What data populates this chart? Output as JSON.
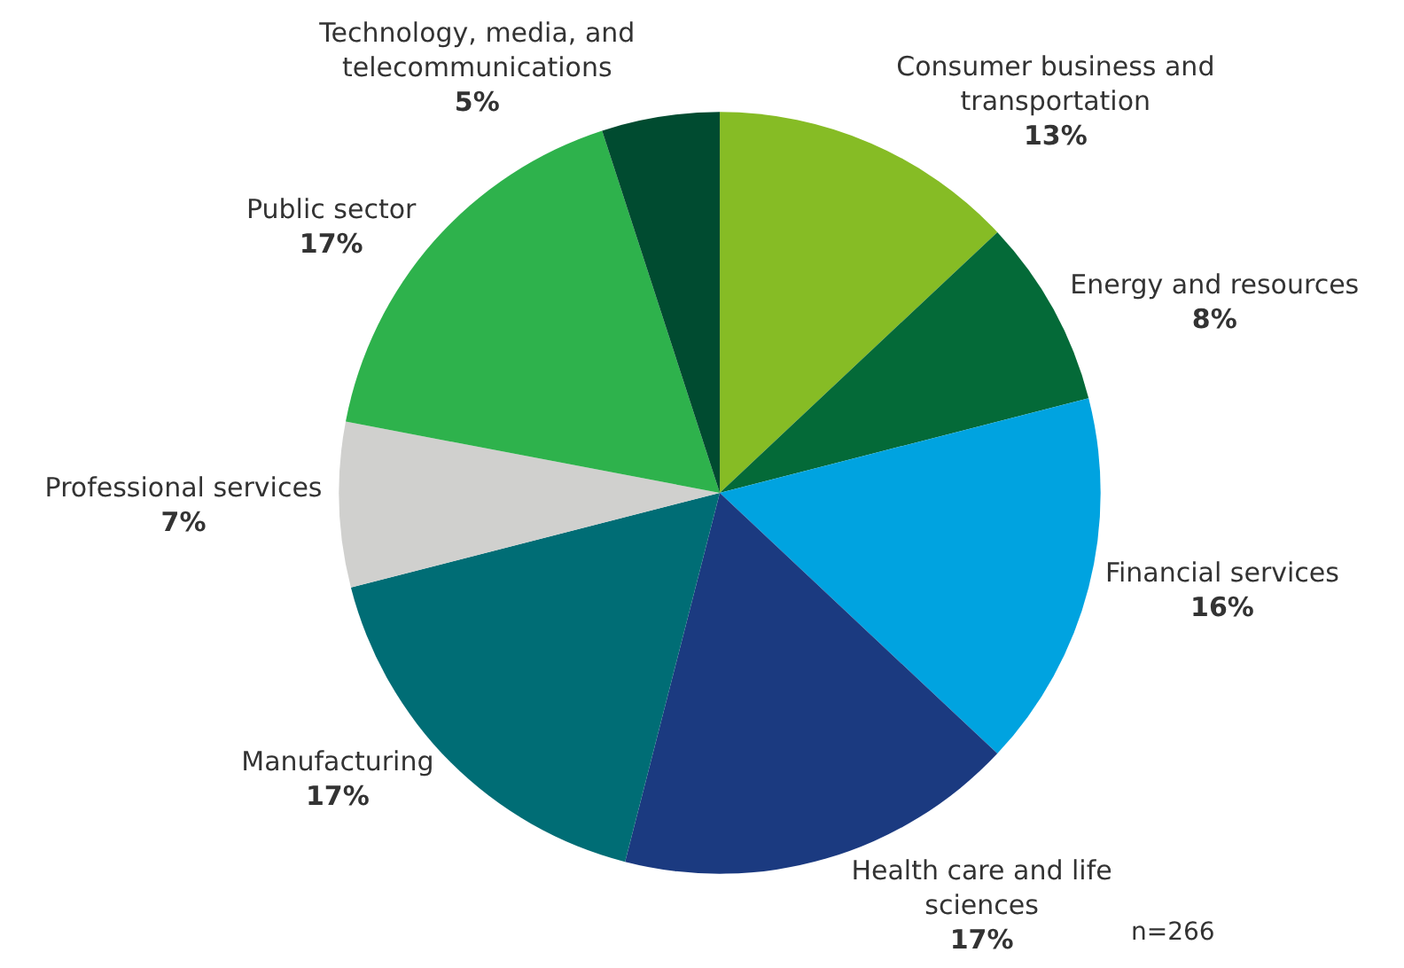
{
  "chart_data": {
    "type": "pie",
    "categories": [
      "Consumer business and transportation",
      "Energy and resources",
      "Financial services",
      "Health care and life sciences",
      "Manufacturing",
      "Professional services",
      "Public sector",
      "Technology, media, and telecommunications"
    ],
    "values": [
      13,
      8,
      16,
      17,
      17,
      7,
      17,
      5
    ],
    "value_labels": [
      "13%",
      "8%",
      "16%",
      "17%",
      "17%",
      "7%",
      "17%",
      "5%"
    ],
    "colors": [
      "#86bc25",
      "#046a38",
      "#00a3e0",
      "#1b3a80",
      "#006d75",
      "#d0d0ce",
      "#2eb24c",
      "#004b30"
    ],
    "annotations": [
      "n=266"
    ],
    "legend": false
  }
}
